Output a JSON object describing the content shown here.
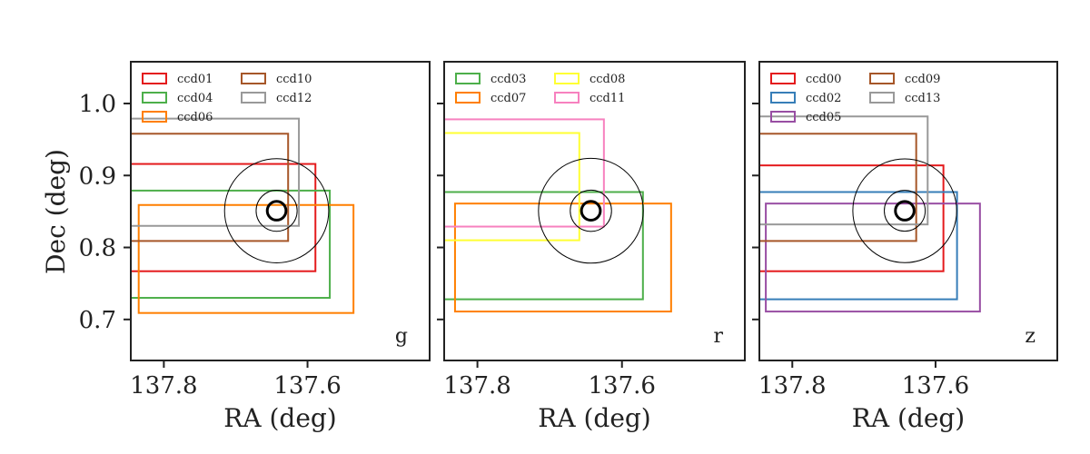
{
  "chart_data": {
    "type": "rectangles",
    "ylabel": "Dec (deg)",
    "yticks": [
      1.0,
      0.9,
      0.8,
      0.7
    ],
    "ytick_labels": [
      "1.0",
      "0.9",
      "0.8",
      "0.7"
    ],
    "ylim": [
      0.643,
      1.058
    ],
    "target": {
      "ra": 137.643,
      "dec": 0.851,
      "circles": [
        "small-bold",
        "medium",
        "large"
      ]
    },
    "panels": [
      {
        "band": "g",
        "xlabel": "RA (deg)",
        "xlim": [
          137.846,
          137.43
        ],
        "xticks": [
          137.8,
          137.6
        ],
        "xtick_labels": [
          "137.8",
          "137.6"
        ],
        "legend_columns": [
          [
            "ccd01",
            "ccd04",
            "ccd06"
          ],
          [
            "ccd10",
            "ccd12"
          ]
        ],
        "ccds": [
          {
            "name": "ccd01",
            "color": "#e41a1c",
            "ra_min": 137.589,
            "ra_max": 137.846,
            "dec_min": 0.767,
            "dec_max": 0.916
          },
          {
            "name": "ccd04",
            "color": "#4daf4a",
            "ra_min": 137.569,
            "ra_max": 137.846,
            "dec_min": 0.73,
            "dec_max": 0.879
          },
          {
            "name": "ccd06",
            "color": "#ff7f00",
            "ra_min": 137.536,
            "ra_max": 137.835,
            "dec_min": 0.709,
            "dec_max": 0.859
          },
          {
            "name": "ccd10",
            "color": "#a65628",
            "ra_min": 137.627,
            "ra_max": 137.846,
            "dec_min": 0.809,
            "dec_max": 0.958
          },
          {
            "name": "ccd12",
            "color": "#999999",
            "ra_min": 137.612,
            "ra_max": 137.846,
            "dec_min": 0.83,
            "dec_max": 0.979
          }
        ]
      },
      {
        "band": "r",
        "xlabel": "RA (deg)",
        "xlim": [
          137.846,
          137.43
        ],
        "xticks": [
          137.8,
          137.6
        ],
        "xtick_labels": [
          "137.8",
          "137.6"
        ],
        "legend_columns": [
          [
            "ccd03",
            "ccd07"
          ],
          [
            "ccd08",
            "ccd11"
          ]
        ],
        "ccds": [
          {
            "name": "ccd03",
            "color": "#4daf4a",
            "ra_min": 137.571,
            "ra_max": 137.846,
            "dec_min": 0.728,
            "dec_max": 0.877
          },
          {
            "name": "ccd07",
            "color": "#ff7f00",
            "ra_min": 137.532,
            "ra_max": 137.831,
            "dec_min": 0.711,
            "dec_max": 0.861
          },
          {
            "name": "ccd08",
            "color": "#ffff33",
            "ra_min": 137.659,
            "ra_max": 137.846,
            "dec_min": 0.81,
            "dec_max": 0.959
          },
          {
            "name": "ccd11",
            "color": "#f781bf",
            "ra_min": 137.625,
            "ra_max": 137.846,
            "dec_min": 0.829,
            "dec_max": 0.978
          }
        ]
      },
      {
        "band": "z",
        "xlabel": "RA (deg)",
        "xlim": [
          137.846,
          137.43
        ],
        "xticks": [
          137.8,
          137.6
        ],
        "xtick_labels": [
          "137.8",
          "137.6"
        ],
        "legend_columns": [
          [
            "ccd00",
            "ccd02",
            "ccd05"
          ],
          [
            "ccd09",
            "ccd13"
          ]
        ],
        "ccds": [
          {
            "name": "ccd00",
            "color": "#e41a1c",
            "ra_min": 137.589,
            "ra_max": 137.846,
            "dec_min": 0.767,
            "dec_max": 0.914
          },
          {
            "name": "ccd02",
            "color": "#377eb8",
            "ra_min": 137.57,
            "ra_max": 137.846,
            "dec_min": 0.728,
            "dec_max": 0.877
          },
          {
            "name": "ccd05",
            "color": "#984ea3",
            "ra_min": 137.538,
            "ra_max": 137.837,
            "dec_min": 0.711,
            "dec_max": 0.861
          },
          {
            "name": "ccd09",
            "color": "#a65628",
            "ra_min": 137.627,
            "ra_max": 137.846,
            "dec_min": 0.809,
            "dec_max": 0.958
          },
          {
            "name": "ccd13",
            "color": "#999999",
            "ra_min": 137.611,
            "ra_max": 137.846,
            "dec_min": 0.832,
            "dec_max": 0.982
          }
        ]
      }
    ]
  }
}
